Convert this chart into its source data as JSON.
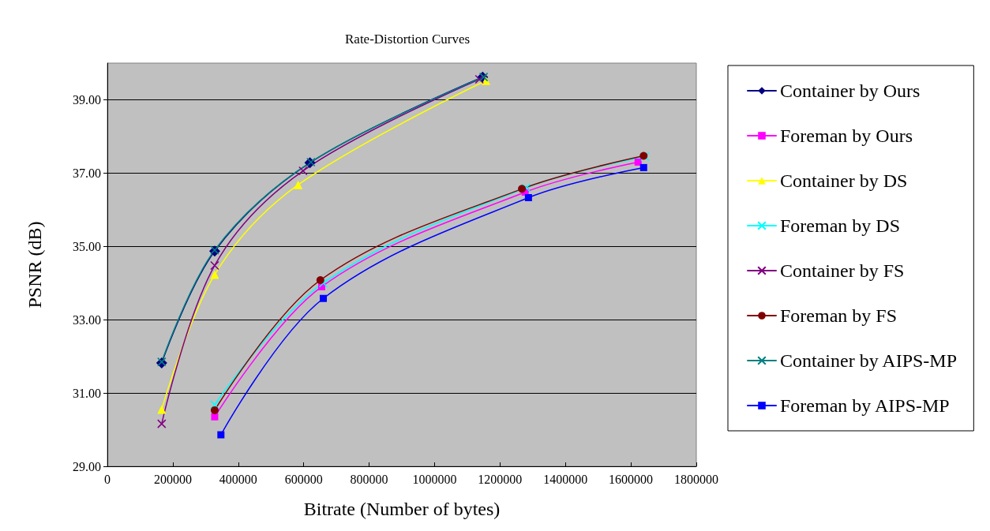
{
  "chart_data": {
    "type": "line",
    "title": "Rate-Distortion Curves",
    "xlabel": "Bitrate (Number of bytes)",
    "ylabel": "PSNR (dB)",
    "xlim": [
      0,
      1800000
    ],
    "xticks": [
      0,
      200000,
      400000,
      600000,
      800000,
      1000000,
      1200000,
      1400000,
      1600000,
      1800000
    ],
    "ylim": [
      29,
      40
    ],
    "yticks": [
      {
        "value": 29,
        "label": "29.00"
      },
      {
        "value": 31,
        "label": "31.00"
      },
      {
        "value": 33,
        "label": "33.00"
      },
      {
        "value": 35,
        "label": "35.00"
      },
      {
        "value": 37,
        "label": "37.00"
      },
      {
        "value": 39,
        "label": "39.00"
      }
    ],
    "grid": "y",
    "legend": "right",
    "line_style": "solid",
    "series": [
      {
        "name": "Container by Ours",
        "color": "#000080",
        "marker": "diamond",
        "x": [
          166000,
          328000,
          619000,
          1147000
        ],
        "values": [
          31.82,
          34.87,
          37.28,
          39.62
        ]
      },
      {
        "name": "Foreman by Ours",
        "color": "#ff00ff",
        "marker": "square",
        "x": [
          328000,
          655000,
          1277000,
          1622000
        ],
        "values": [
          30.35,
          33.9,
          36.48,
          37.3
        ]
      },
      {
        "name": "Container by DS",
        "color": "#ffff00",
        "marker": "triangle",
        "x": [
          166000,
          328000,
          583000,
          1157000
        ],
        "values": [
          30.55,
          34.23,
          36.68,
          39.52
        ]
      },
      {
        "name": "Foreman by DS",
        "color": "#00ffff",
        "marker": "cross",
        "x": [
          328000,
          660000,
          1280000,
          1643000
        ],
        "values": [
          30.68,
          34.0,
          36.6,
          37.45
        ]
      },
      {
        "name": "Container by FS",
        "color": "#800080",
        "marker": "cross",
        "x": [
          166000,
          328000,
          598000,
          1137000
        ],
        "values": [
          30.16,
          34.48,
          37.06,
          39.56
        ]
      },
      {
        "name": "Foreman by FS",
        "color": "#800000",
        "marker": "circle",
        "x": [
          328000,
          651000,
          1267000,
          1639000
        ],
        "values": [
          30.53,
          34.08,
          36.57,
          37.47
        ]
      },
      {
        "name": "Container by AIPS-MP",
        "color": "#008080",
        "marker": "cross",
        "x": [
          166000,
          328000,
          622000,
          1150000
        ],
        "values": [
          31.85,
          34.9,
          37.3,
          39.62
        ]
      },
      {
        "name": "Foreman by AIPS-MP",
        "color": "#0000ff",
        "marker": "square",
        "x": [
          347000,
          660000,
          1287000,
          1639000
        ],
        "values": [
          29.86,
          33.58,
          36.33,
          37.15
        ]
      }
    ]
  }
}
